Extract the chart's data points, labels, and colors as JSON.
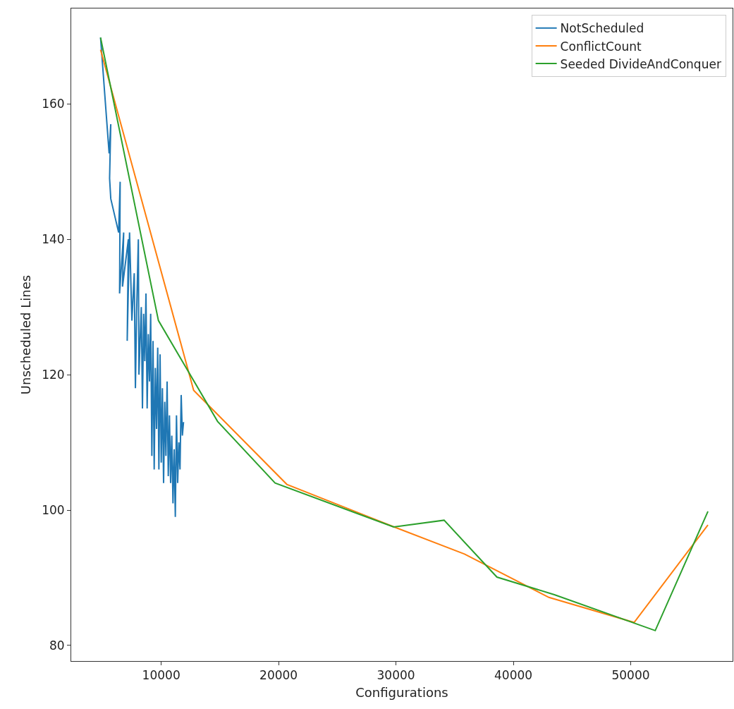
{
  "chart_data": {
    "type": "line",
    "xlabel": "Configurations",
    "ylabel": "Unscheduled Lines",
    "xlim": [
      2330,
      58680
    ],
    "ylim": [
      77.7,
      174.1
    ],
    "xticks": [
      10000,
      20000,
      30000,
      40000,
      50000
    ],
    "yticks": [
      80,
      100,
      120,
      140,
      160
    ],
    "legend": "top right",
    "marker": "none",
    "line_style": "solid",
    "series": [
      {
        "name": "NotScheduled",
        "color": "#1f77b4",
        "x": [
          4830,
          5560,
          5700,
          5600,
          5700,
          6370,
          6500,
          6450,
          6800,
          6700,
          7200,
          7100,
          7300,
          7500,
          7700,
          7800,
          7900,
          8050,
          8100,
          8300,
          8400,
          8500,
          8600,
          8700,
          8800,
          8900,
          9000,
          9100,
          9200,
          9300,
          9400,
          9500,
          9600,
          9700,
          9800,
          9900,
          10000,
          10100,
          10200,
          10300,
          10400,
          10500,
          10600,
          10700,
          10800,
          10900,
          11000,
          11100,
          11200,
          11300,
          11400,
          11500,
          11600,
          11700,
          11800,
          11900
        ],
        "values": [
          169.8,
          152.7,
          157,
          149,
          146,
          141,
          148.5,
          132,
          141,
          133,
          140,
          125,
          141,
          128,
          135,
          118,
          129,
          140,
          120,
          130,
          115,
          129,
          122,
          132,
          115,
          126,
          119,
          129,
          108,
          125,
          106,
          121,
          112,
          124,
          106,
          123,
          107,
          118,
          104,
          116,
          108,
          119,
          105,
          114,
          104,
          111,
          101,
          109,
          99,
          114,
          104,
          110,
          106,
          117,
          111,
          113
        ]
      },
      {
        "name": "ConflictCount",
        "color": "#ff7f0e",
        "x": [
          4830,
          12760,
          20700,
          29850,
          35840,
          43030,
          50290,
          56580
        ],
        "values": [
          168.0,
          117.7,
          103.8,
          97.5,
          93.5,
          87.1,
          83.4,
          97.8
        ]
      },
      {
        "name": "Seeded DivideAndConquer",
        "color": "#2ca02c",
        "x": [
          4830,
          9760,
          14800,
          19700,
          29800,
          34100,
          38600,
          43500,
          52090,
          56580
        ],
        "values": [
          169.8,
          128.0,
          113.1,
          104.0,
          97.5,
          98.5,
          90.1,
          87.5,
          82.2,
          99.8
        ]
      }
    ]
  }
}
